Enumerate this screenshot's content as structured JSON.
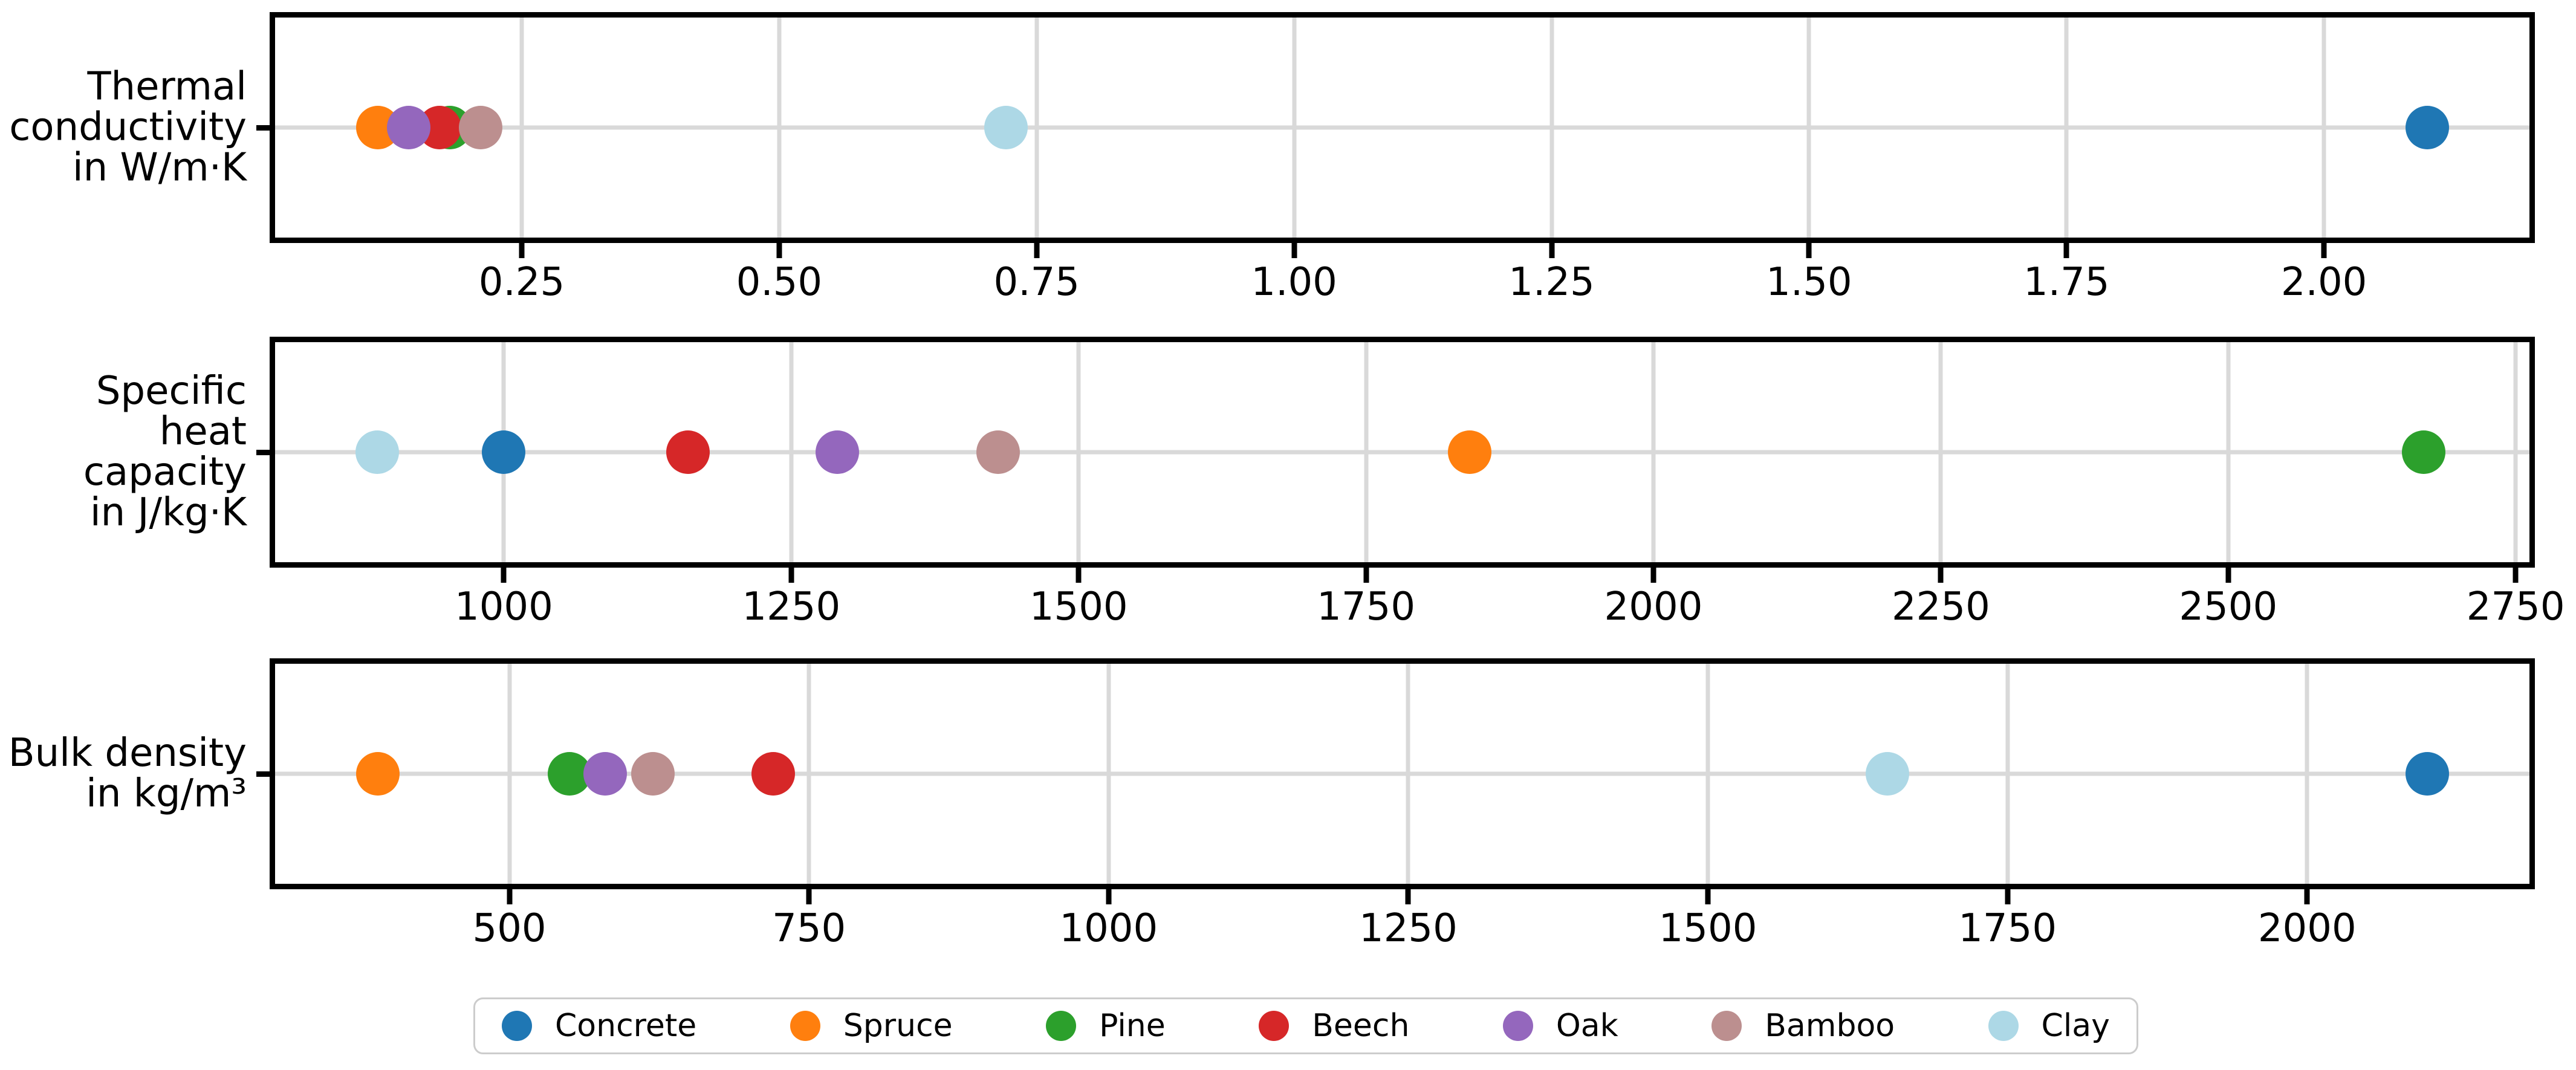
{
  "figure": {
    "background": "#ffffff",
    "grid_color": "#d9d9d9",
    "spine_color": "#000000",
    "text_color": "#000000",
    "grid": true,
    "legend_position": "bottom-center"
  },
  "materials": {
    "Concrete": "#1f77b4",
    "Spruce": "#ff7f0e",
    "Pine": "#2ca02c",
    "Beech": "#d62728",
    "Oak": "#9467bd",
    "Bamboo": "#bc8f8f",
    "Clay": "#add8e6"
  },
  "legend": {
    "items": [
      {
        "label": "Concrete",
        "color": "#1f77b4"
      },
      {
        "label": "Spruce",
        "color": "#ff7f0e"
      },
      {
        "label": "Pine",
        "color": "#2ca02c"
      },
      {
        "label": "Beech",
        "color": "#d62728"
      },
      {
        "label": "Oak",
        "color": "#9467bd"
      },
      {
        "label": "Bamboo",
        "color": "#bc8f8f"
      },
      {
        "label": "Clay",
        "color": "#add8e6"
      }
    ]
  },
  "chart_data": [
    {
      "type": "scatter",
      "id": "thermal-conductivity",
      "title": "",
      "row_label_lines": [
        "Thermal",
        "conductivity",
        "in W/m·K"
      ],
      "ylabel": "Thermal conductivity in W/m·K",
      "xlim": [
        0.0105,
        2.1995
      ],
      "xticks": [
        {
          "value": 0.25,
          "label": "0.25"
        },
        {
          "value": 0.5,
          "label": "0.50"
        },
        {
          "value": 0.75,
          "label": "0.75"
        },
        {
          "value": 1.0,
          "label": "1.00"
        },
        {
          "value": 1.25,
          "label": "1.25"
        },
        {
          "value": 1.5,
          "label": "1.50"
        },
        {
          "value": 1.75,
          "label": "1.75"
        },
        {
          "value": 2.0,
          "label": "2.00"
        }
      ],
      "points": [
        {
          "material": "Concrete",
          "value": 2.1
        },
        {
          "material": "Spruce",
          "value": 0.11
        },
        {
          "material": "Pine",
          "value": 0.18
        },
        {
          "material": "Beech",
          "value": 0.17
        },
        {
          "material": "Oak",
          "value": 0.14
        },
        {
          "material": "Bamboo",
          "value": 0.21
        },
        {
          "material": "Clay",
          "value": 0.72
        }
      ]
    },
    {
      "type": "scatter",
      "id": "specific-heat-capacity",
      "title": "",
      "row_label_lines": [
        "Specific heat",
        "capacity",
        "in J/kg·K"
      ],
      "ylabel": "Specific heat capacity in J/kg·K",
      "xlim": [
        801,
        2762
      ],
      "xticks": [
        {
          "value": 1000,
          "label": "1000"
        },
        {
          "value": 1250,
          "label": "1250"
        },
        {
          "value": 1500,
          "label": "1500"
        },
        {
          "value": 1750,
          "label": "1750"
        },
        {
          "value": 2000,
          "label": "2000"
        },
        {
          "value": 2250,
          "label": "2250"
        },
        {
          "value": 2500,
          "label": "2500"
        },
        {
          "value": 2750,
          "label": "2750"
        }
      ],
      "points": [
        {
          "material": "Concrete",
          "value": 1000
        },
        {
          "material": "Spruce",
          "value": 1840
        },
        {
          "material": "Pine",
          "value": 2670
        },
        {
          "material": "Beech",
          "value": 1160
        },
        {
          "material": "Oak",
          "value": 1290
        },
        {
          "material": "Bamboo",
          "value": 1430
        },
        {
          "material": "Clay",
          "value": 890
        }
      ]
    },
    {
      "type": "scatter",
      "id": "bulk-density",
      "title": "",
      "row_label_lines": [
        "Bulk density",
        "in kg/m³"
      ],
      "ylabel": "Bulk density in kg/m³",
      "xlim": [
        304.5,
        2185.5
      ],
      "xticks": [
        {
          "value": 500,
          "label": "500"
        },
        {
          "value": 750,
          "label": "750"
        },
        {
          "value": 1000,
          "label": "1000"
        },
        {
          "value": 1250,
          "label": "1250"
        },
        {
          "value": 1500,
          "label": "1500"
        },
        {
          "value": 1750,
          "label": "1750"
        },
        {
          "value": 2000,
          "label": "2000"
        }
      ],
      "points": [
        {
          "material": "Concrete",
          "value": 2100
        },
        {
          "material": "Spruce",
          "value": 390
        },
        {
          "material": "Pine",
          "value": 550
        },
        {
          "material": "Beech",
          "value": 720
        },
        {
          "material": "Oak",
          "value": 580
        },
        {
          "material": "Bamboo",
          "value": 620
        },
        {
          "material": "Clay",
          "value": 1650
        }
      ]
    }
  ]
}
